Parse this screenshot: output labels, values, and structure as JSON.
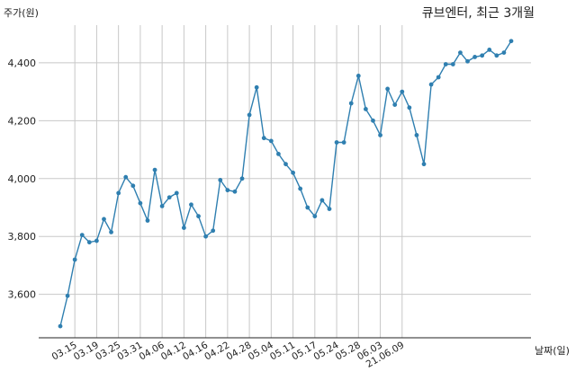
{
  "chart_data": {
    "type": "line",
    "title": "큐브엔터, 최근 3개월",
    "ylabel": "주가(원)",
    "xlabel": "날짜(일)",
    "ylim": [
      3450,
      4530
    ],
    "yticks": [
      3600,
      3800,
      4000,
      4200,
      4400
    ],
    "ytick_labels": [
      "3,600",
      "3,800",
      "4,000",
      "4,200",
      "4,400"
    ],
    "xtick_labels": [
      "03.15",
      "03.19",
      "03.25",
      "03.31",
      "04.06",
      "04.12",
      "04.16",
      "04.22",
      "04.28",
      "05.04",
      "05.11",
      "05.17",
      "05.24",
      "05.28",
      "06.03",
      "21.06.09"
    ],
    "xtick_index": [
      2,
      5,
      8,
      11,
      14,
      17,
      20,
      23,
      26,
      29,
      32,
      35,
      38,
      41,
      44,
      47
    ],
    "grid": true,
    "color": "#2f7fb0",
    "series": [
      {
        "values": [
          3490,
          3595,
          3720,
          3805,
          3780,
          3785,
          3860,
          3815,
          3950,
          4005,
          3975,
          3915,
          3855,
          4030,
          3905,
          3935,
          3950,
          3830,
          3910,
          3870,
          3800,
          3820,
          3995,
          3960,
          3955,
          4000,
          4220,
          4315,
          4140,
          4130,
          4085,
          4050,
          4020,
          3965,
          3900,
          3870,
          3925,
          3895,
          4125,
          4125,
          4260,
          4355,
          4240,
          4200,
          4150,
          4310,
          4255,
          4300,
          4245,
          4150,
          4050,
          4325,
          4350,
          4395,
          4395,
          4435,
          4405,
          4420,
          4425,
          4445,
          4425,
          4435,
          4475
        ]
      }
    ]
  }
}
